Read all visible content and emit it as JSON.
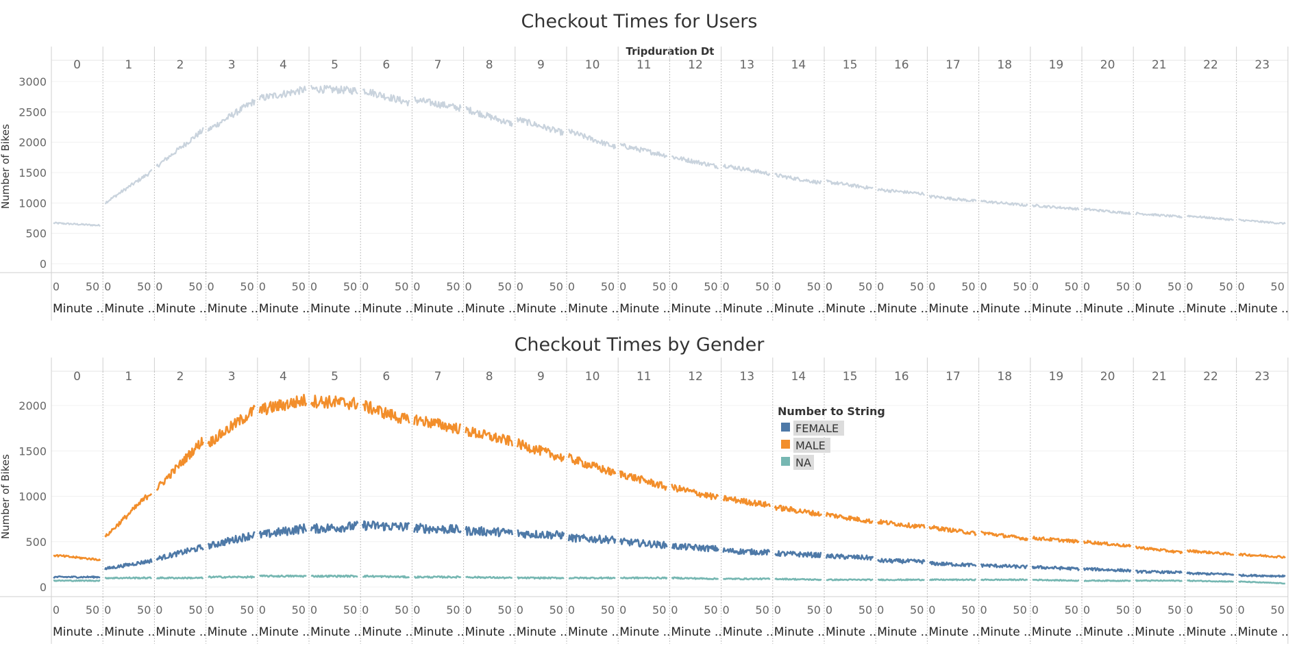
{
  "charts": [
    {
      "title": "Checkout Times for Users",
      "column_header_title": "Tripduration Dt",
      "y_axis_title": "Number of Bikes",
      "y_ticks": [
        "3000",
        "2500",
        "2000",
        "1500",
        "1000",
        "500",
        "0"
      ],
      "x_ticks": [
        "0",
        "50"
      ],
      "minute_label": "Minute ..",
      "hours": [
        "0",
        "1",
        "2",
        "3",
        "4",
        "5",
        "6",
        "7",
        "8",
        "9",
        "10",
        "11",
        "12",
        "13",
        "14",
        "15",
        "16",
        "17",
        "18",
        "19",
        "20",
        "21",
        "22",
        "23"
      ]
    },
    {
      "title": "Checkout Times by Gender",
      "y_axis_title": "Number of Bikes",
      "y_ticks": [
        "2000",
        "1500",
        "1000",
        "500",
        "0"
      ],
      "x_ticks": [
        "0",
        "50"
      ],
      "minute_label": "Minute ..",
      "hours": [
        "0",
        "1",
        "2",
        "3",
        "4",
        "5",
        "6",
        "7",
        "8",
        "9",
        "10",
        "11",
        "12",
        "13",
        "14",
        "15",
        "16",
        "17",
        "18",
        "19",
        "20",
        "21",
        "22",
        "23"
      ],
      "legend": {
        "title": "Number to String",
        "items": [
          {
            "label": "FEMALE",
            "color": "#4e79a7"
          },
          {
            "label": "MALE",
            "color": "#f28e2b"
          },
          {
            "label": "NA",
            "color": "#76b7b2"
          }
        ]
      }
    }
  ],
  "chart_data": [
    {
      "type": "line",
      "title": "Checkout Times for Users",
      "xlabel": "Minute ..",
      "ylabel": "Number of Bikes",
      "facet": "Tripduration Dt",
      "ylim": [
        0,
        3000
      ],
      "x_range_per_panel": [
        0,
        59
      ],
      "grid": true,
      "series": [
        {
          "color": "#c9d3dd",
          "panel_start": [
            670,
            1000,
            1600,
            2200,
            2720,
            2880,
            2860,
            2700,
            2550,
            2380,
            2180,
            1950,
            1760,
            1620,
            1460,
            1350,
            1220,
            1110,
            1030,
            960,
            900,
            830,
            790,
            720
          ],
          "panel_end": [
            630,
            1520,
            2200,
            2680,
            2870,
            2850,
            2650,
            2560,
            2300,
            2150,
            1920,
            1780,
            1600,
            1480,
            1330,
            1240,
            1150,
            1030,
            960,
            900,
            830,
            770,
            720,
            660
          ]
        }
      ]
    },
    {
      "type": "line",
      "title": "Checkout Times by Gender",
      "xlabel": "Minute ..",
      "ylabel": "Number of Bikes",
      "facet": "Tripduration Dt",
      "ylim": [
        0,
        2000
      ],
      "x_range_per_panel": [
        0,
        59
      ],
      "grid": true,
      "legend_position": "center-right",
      "series": [
        {
          "name": "FEMALE",
          "color": "#4e79a7",
          "panel_start": [
            110,
            200,
            310,
            450,
            570,
            640,
            680,
            650,
            620,
            590,
            540,
            500,
            450,
            400,
            370,
            340,
            290,
            260,
            240,
            220,
            200,
            170,
            150,
            130
          ],
          "panel_end": [
            110,
            290,
            440,
            580,
            650,
            670,
            660,
            630,
            600,
            570,
            520,
            460,
            420,
            380,
            350,
            320,
            280,
            240,
            220,
            200,
            180,
            160,
            140,
            120
          ]
        },
        {
          "name": "MALE",
          "color": "#f28e2b",
          "panel_start": [
            350,
            550,
            1080,
            1580,
            1950,
            2050,
            2000,
            1850,
            1720,
            1580,
            1420,
            1250,
            1100,
            980,
            880,
            800,
            720,
            660,
            600,
            540,
            500,
            440,
            400,
            360
          ],
          "panel_end": [
            300,
            1050,
            1620,
            1950,
            2060,
            2020,
            1830,
            1740,
            1600,
            1420,
            1250,
            1100,
            980,
            900,
            800,
            720,
            660,
            590,
            530,
            500,
            450,
            380,
            360,
            330
          ]
        },
        {
          "name": "NA",
          "color": "#76b7b2",
          "panel_start": [
            70,
            100,
            100,
            110,
            120,
            120,
            120,
            110,
            110,
            100,
            100,
            100,
            100,
            90,
            90,
            80,
            80,
            80,
            80,
            80,
            70,
            70,
            70,
            60
          ],
          "panel_end": [
            70,
            100,
            100,
            110,
            120,
            120,
            110,
            110,
            100,
            100,
            100,
            100,
            90,
            90,
            80,
            80,
            80,
            80,
            80,
            70,
            70,
            70,
            60,
            40
          ]
        }
      ]
    }
  ]
}
